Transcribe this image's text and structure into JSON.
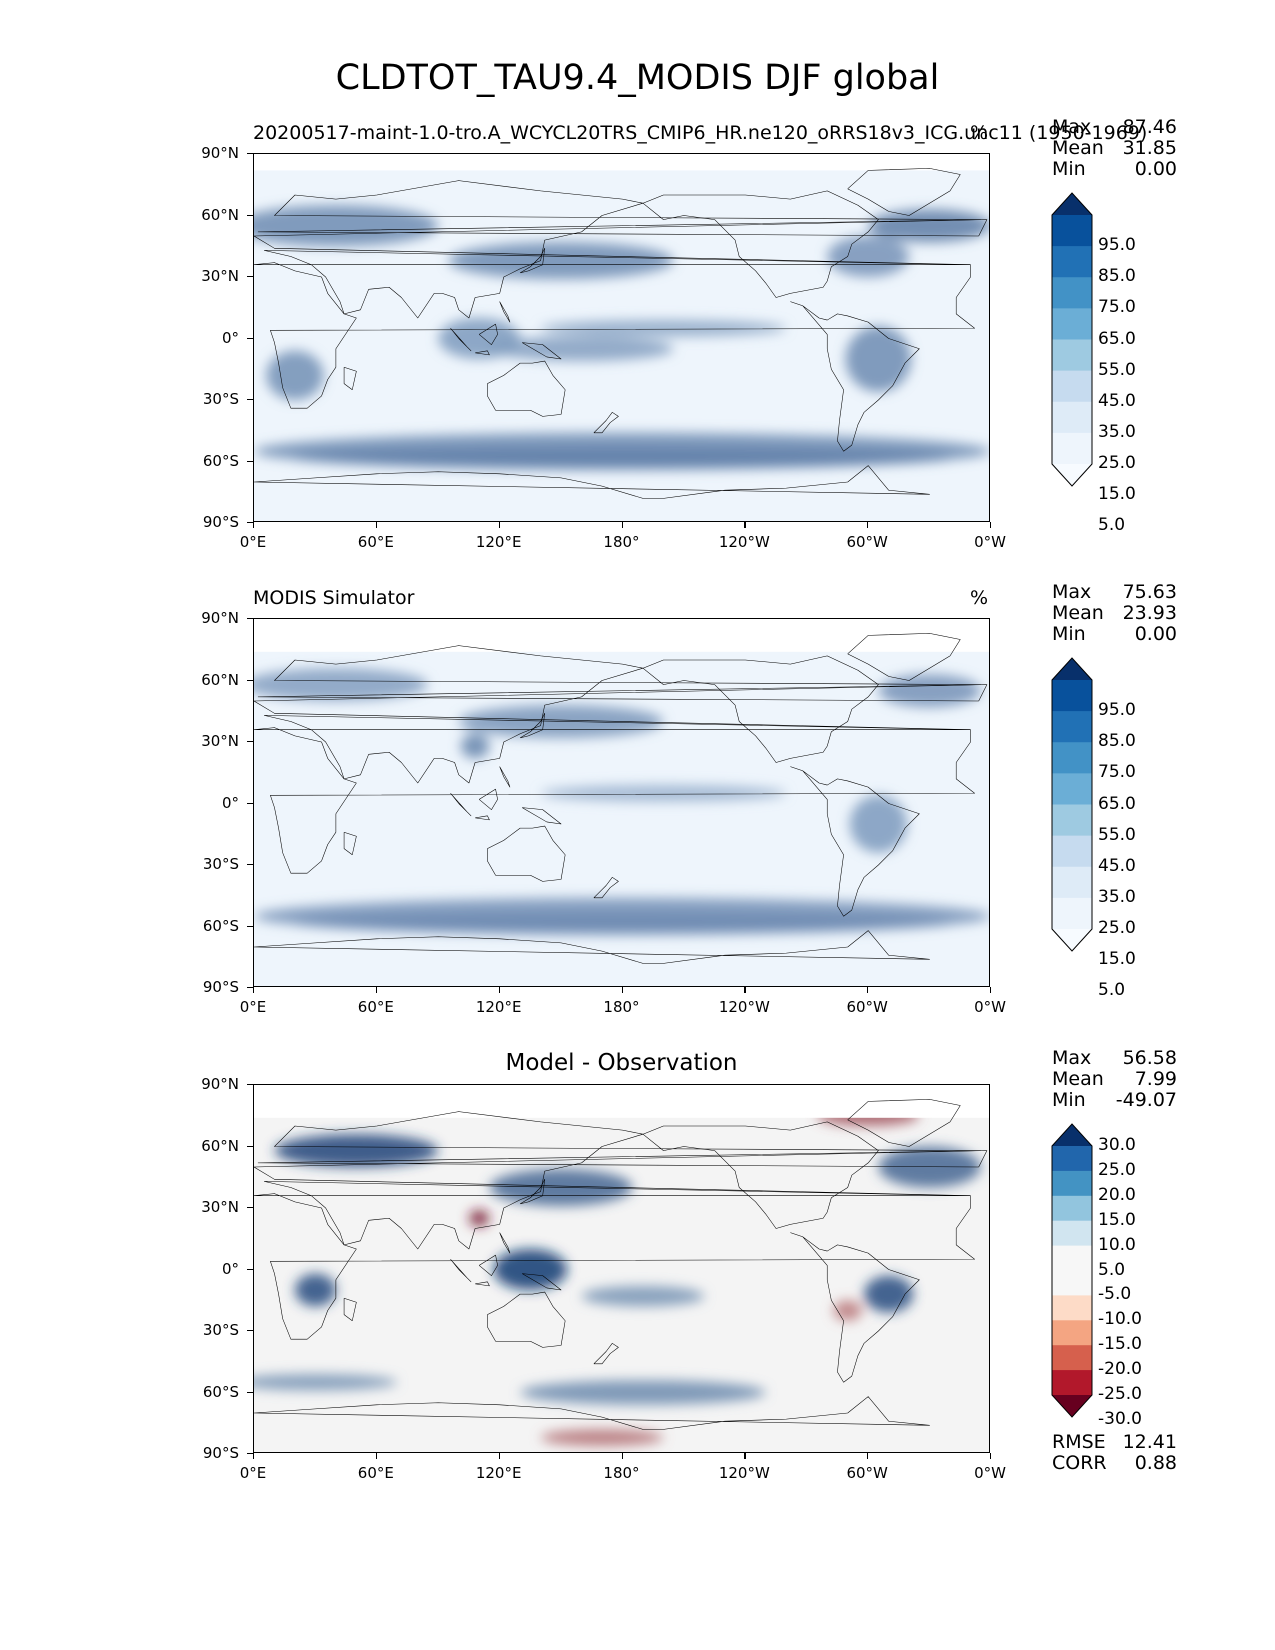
{
  "main_title": "CLDTOT_TAU9.4_MODIS DJF global",
  "panels": [
    {
      "title": "20200517-maint-1.0-tro.A_WCYCL20TRS_CMIP6_HR.ne120_oRRS18v3_ICG.unc11 (1950-1969)",
      "unit": "%",
      "stats": [
        {
          "label": "Max",
          "value": "87.46"
        },
        {
          "label": "Mean",
          "value": "31.85"
        },
        {
          "label": "Min",
          "value": "0.00"
        }
      ],
      "colorbar_ticks": [
        "95.0",
        "85.0",
        "75.0",
        "65.0",
        "55.0",
        "45.0",
        "35.0",
        "25.0",
        "15.0",
        "5.0"
      ],
      "colorbar_colors": [
        "#08306b",
        "#08519c",
        "#2171b5",
        "#4292c6",
        "#6baed6",
        "#9ecae1",
        "#c6dbef",
        "#deebf7",
        "#eef5fc",
        "#f7fbff"
      ]
    },
    {
      "title": "MODIS Simulator",
      "unit": "%",
      "stats": [
        {
          "label": "Max",
          "value": "75.63"
        },
        {
          "label": "Mean",
          "value": "23.93"
        },
        {
          "label": "Min",
          "value": "0.00"
        }
      ],
      "colorbar_ticks": [
        "95.0",
        "85.0",
        "75.0",
        "65.0",
        "55.0",
        "45.0",
        "35.0",
        "25.0",
        "15.0",
        "5.0"
      ],
      "colorbar_colors": [
        "#08306b",
        "#08519c",
        "#2171b5",
        "#4292c6",
        "#6baed6",
        "#9ecae1",
        "#c6dbef",
        "#deebf7",
        "#eef5fc",
        "#f7fbff"
      ]
    },
    {
      "title": "Model - Observation",
      "unit": "",
      "stats": [
        {
          "label": "Max",
          "value": "56.58"
        },
        {
          "label": "Mean",
          "value": "7.99"
        },
        {
          "label": "Min",
          "value": "-49.07"
        }
      ],
      "colorbar_ticks": [
        "30.0",
        "25.0",
        "20.0",
        "15.0",
        "10.0",
        "5.0",
        "-5.0",
        "-10.0",
        "-15.0",
        "-20.0",
        "-25.0",
        "-30.0"
      ],
      "colorbar_colors": [
        "#08306b",
        "#2166ac",
        "#4393c3",
        "#92c5de",
        "#d1e5f0",
        "#f7f7f7",
        "#f7f7f7",
        "#fddbc7",
        "#f4a582",
        "#d6604d",
        "#b2182b",
        "#67001f"
      ],
      "extra_stats": [
        {
          "label": "RMSE",
          "value": "12.41"
        },
        {
          "label": "CORR",
          "value": "0.88"
        }
      ]
    }
  ],
  "lat_ticks": [
    "90°N",
    "60°N",
    "30°N",
    "0°",
    "30°S",
    "60°S",
    "90°S"
  ],
  "lon_ticks": [
    "0°E",
    "60°E",
    "120°E",
    "180°",
    "120°W",
    "60°W",
    "0°W"
  ],
  "chart_data": [
    {
      "type": "heatmap",
      "title": "20200517-maint-1.0-tro.A_WCYCL20TRS_CMIP6_HR.ne120_oRRS18v3_ICG.unc11 (1950-1969)",
      "unit": "%",
      "x_range": [
        0,
        360
      ],
      "y_range": [
        -90,
        90
      ],
      "levels": [
        5,
        15,
        25,
        35,
        45,
        55,
        65,
        75,
        85,
        95
      ],
      "max": 87.46,
      "mean": 31.85,
      "min": 0.0
    },
    {
      "type": "heatmap",
      "title": "MODIS Simulator",
      "unit": "%",
      "x_range": [
        0,
        360
      ],
      "y_range": [
        -90,
        90
      ],
      "levels": [
        5,
        15,
        25,
        35,
        45,
        55,
        65,
        75,
        85,
        95
      ],
      "max": 75.63,
      "mean": 23.93,
      "min": 0.0
    },
    {
      "type": "heatmap",
      "title": "Model - Observation",
      "x_range": [
        0,
        360
      ],
      "y_range": [
        -90,
        90
      ],
      "levels": [
        -30,
        -25,
        -20,
        -15,
        -10,
        -5,
        5,
        10,
        15,
        20,
        25,
        30
      ],
      "max": 56.58,
      "mean": 7.99,
      "min": -49.07,
      "rmse": 12.41,
      "corr": 0.88
    }
  ]
}
